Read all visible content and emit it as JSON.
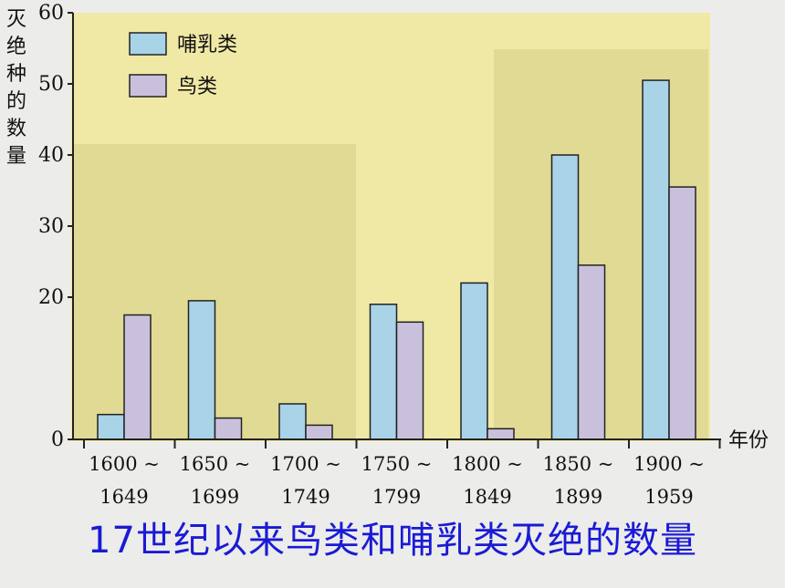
{
  "chart_data": {
    "type": "bar",
    "categories": [
      "1600 ~ 1649",
      "1650 ~ 1699",
      "1700 ~ 1749",
      "1750 ~ 1799",
      "1800 ~ 1849",
      "1850 ~ 1899",
      "1900 ~ 1959"
    ],
    "category_lines": [
      [
        "1600 ~",
        "1649"
      ],
      [
        "1650 ~",
        "1699"
      ],
      [
        "1700 ~",
        "1749"
      ],
      [
        "1750 ~",
        "1799"
      ],
      [
        "1800 ~",
        "1849"
      ],
      [
        "1850 ~",
        "1899"
      ],
      [
        "1900 ~",
        "1959"
      ]
    ],
    "series": [
      {
        "name": "哺乳类",
        "values": [
          3.5,
          19.5,
          5,
          19,
          22,
          40,
          50.5
        ],
        "color": "#a9d3e6"
      },
      {
        "name": "鸟类",
        "values": [
          17.5,
          3,
          2,
          16.5,
          1.5,
          24.5,
          35.5
        ],
        "color": "#c9c1dc"
      }
    ],
    "title": "17世纪以来鸟类和哺乳类灭绝的数量",
    "xlabel": "年份",
    "ylabel": "灭绝种的数量",
    "ylim": [
      0,
      60
    ],
    "yticks": [
      "0",
      "20",
      "30",
      "40",
      "50",
      "60"
    ],
    "ytick_values": [
      0,
      20,
      30,
      40,
      50,
      60
    ],
    "grid": false,
    "legend": "top-left"
  },
  "colors": {
    "plot_background": "#f0e9a6",
    "shade": "#cdc77e",
    "caption": "#1a1ad6"
  }
}
